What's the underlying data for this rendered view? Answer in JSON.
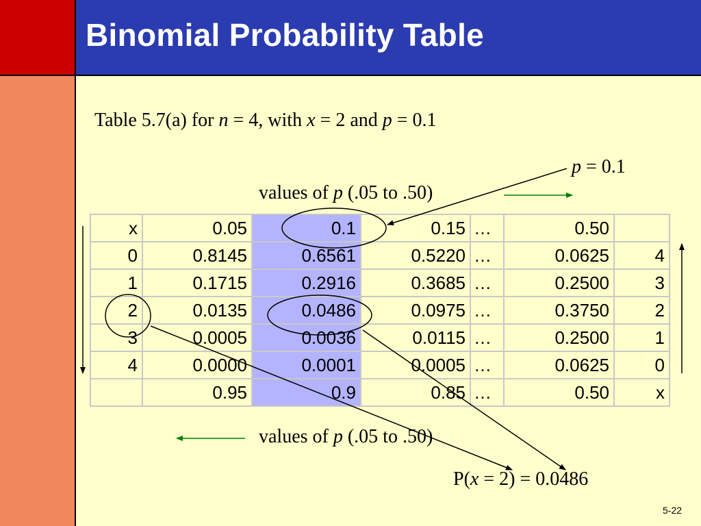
{
  "slide": {
    "title": "Binomial Probability Table",
    "subtitle": {
      "prefix": "Table 5.7(a) for ",
      "n_var": "n",
      "n_eq": " = 4, with ",
      "x_var": "x",
      "x_eq": " = 2 and ",
      "p_var": "p",
      "p_eq": " = 0.1"
    },
    "p_callout": {
      "var": "p",
      "eq": " = 0.1"
    },
    "values_top": {
      "prefix": "values of ",
      "var": "p",
      "suffix": " (.05 to .50)"
    },
    "values_bottom": {
      "prefix": "values of ",
      "var": "p",
      "suffix": " (.05 to .50)"
    },
    "result": {
      "prefix": "P(",
      "var": "x",
      "suffix": " = 2) = 0.0486"
    },
    "slide_number": "5-22"
  },
  "table": {
    "header": [
      "x",
      "0.05",
      "0.1",
      "0.15",
      "…",
      "0.50",
      ""
    ],
    "rows": [
      [
        "0",
        "0.8145",
        "0.6561",
        "0.5220",
        "…",
        "0.0625",
        "4"
      ],
      [
        "1",
        "0.1715",
        "0.2916",
        "0.3685",
        "…",
        "0.2500",
        "3"
      ],
      [
        "2",
        "0.0135",
        "0.0486",
        "0.0975",
        "…",
        "0.3750",
        "2"
      ],
      [
        "3",
        "0.0005",
        "0.0036",
        "0.0115",
        "…",
        "0.2500",
        "1"
      ],
      [
        "4",
        "0.0000",
        "0.0001",
        "0.0005",
        "…",
        "0.0625",
        "0"
      ]
    ],
    "footer": [
      "",
      "0.95",
      "0.9",
      "0.85",
      "…",
      "0.50",
      "x"
    ]
  },
  "colors": {
    "header_bg": "#2B3BB0",
    "corner_red": "#CC0000",
    "left_bar": "#F2895E",
    "slide_bg": "#FFFFCC",
    "highlight_column": "#B3B3FF",
    "arrow_green": "#008000"
  }
}
